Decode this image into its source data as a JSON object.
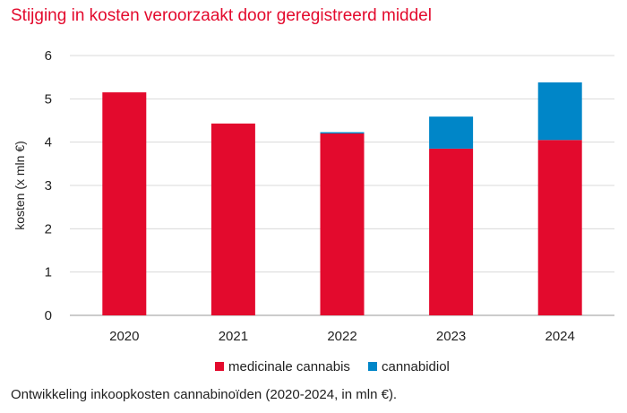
{
  "title": "Stijging in kosten veroorzaakt door geregistreerd middel",
  "caption": "Ontwikkeling inkoopkosten cannabinoïden (2020-2024, in mln €).",
  "chart_data": {
    "type": "bar",
    "stacked": true,
    "title": "Stijging in kosten veroorzaakt door geregistreerd middel",
    "xlabel": "",
    "ylabel": "kosten (x mln €)",
    "ylim": [
      0,
      6
    ],
    "yticks": [
      0,
      1,
      2,
      3,
      4,
      5,
      6
    ],
    "categories": [
      "2020",
      "2021",
      "2022",
      "2023",
      "2024"
    ],
    "series": [
      {
        "name": "medicinale cannabis",
        "color": "#e30a2d",
        "values": [
          5.15,
          4.43,
          4.2,
          3.85,
          4.05
        ]
      },
      {
        "name": "cannabidiol",
        "color": "#0086c8",
        "values": [
          0,
          0,
          0.03,
          0.74,
          1.33
        ]
      }
    ],
    "grid": true,
    "legend": "bottom-center"
  }
}
